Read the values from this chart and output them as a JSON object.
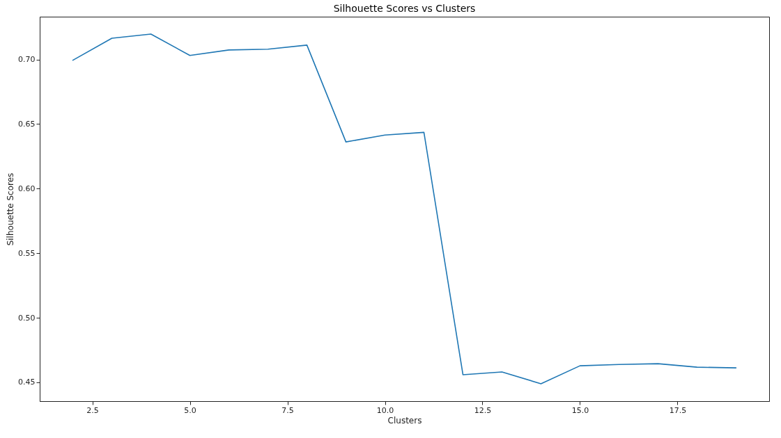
{
  "chart_data": {
    "type": "line",
    "title": "Silhouette Scores vs Clusters",
    "xlabel": "Clusters",
    "ylabel": "Silhouette Scores",
    "x": [
      2,
      3,
      4,
      5,
      6,
      7,
      8,
      9,
      10,
      11,
      12,
      13,
      14,
      15,
      16,
      17,
      18,
      19
    ],
    "series": [
      {
        "color": "#1f77b4",
        "values": [
          0.6995,
          0.7165,
          0.7197,
          0.7032,
          0.7074,
          0.708,
          0.7112,
          0.6362,
          0.6415,
          0.6436,
          0.4559,
          0.458,
          0.4489,
          0.4628,
          0.4638,
          0.4644,
          0.4617,
          0.4612
        ]
      }
    ],
    "xlim": [
      1.15,
      19.85
    ],
    "ylim": [
      0.4354,
      0.7332
    ],
    "xticks": [
      {
        "value": 2.5,
        "label": "2.5"
      },
      {
        "value": 5,
        "label": "5.0"
      },
      {
        "value": 7.5,
        "label": "7.5"
      },
      {
        "value": 10,
        "label": "10.0"
      },
      {
        "value": 12.5,
        "label": "12.5"
      },
      {
        "value": 15,
        "label": "15.0"
      },
      {
        "value": 17.5,
        "label": "17.5"
      }
    ],
    "yticks": [
      {
        "value": 0.45,
        "label": "0.45"
      },
      {
        "value": 0.5,
        "label": "0.50"
      },
      {
        "value": 0.55,
        "label": "0.55"
      },
      {
        "value": 0.6,
        "label": "0.60"
      },
      {
        "value": 0.65,
        "label": "0.65"
      },
      {
        "value": 0.7,
        "label": "0.70"
      }
    ],
    "grid": false,
    "marker": "none",
    "line_style": "solid"
  }
}
